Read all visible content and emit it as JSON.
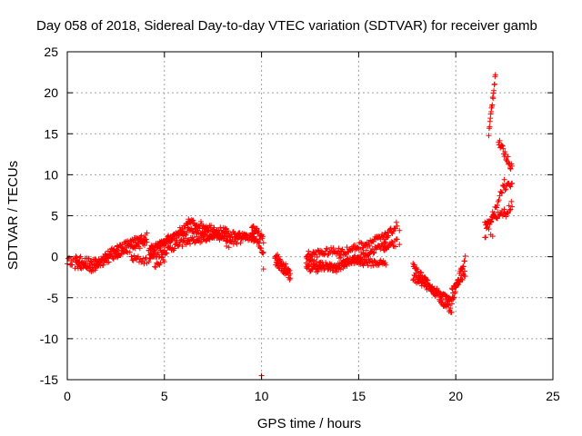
{
  "chart_data": {
    "type": "scatter",
    "title": "Day 058 of 2018, Sidereal Day-to-day VTEC variation (SDTVAR) for receiver gamb",
    "xlabel": "GPS time / hours",
    "ylabel": "SDTVAR / TECUs",
    "xlim": [
      0,
      25
    ],
    "ylim": [
      -15,
      25
    ],
    "xticks": [
      0,
      5,
      10,
      15,
      20,
      25
    ],
    "yticks": [
      -15,
      -10,
      -5,
      0,
      5,
      10,
      15,
      20,
      25
    ],
    "xtick_labels": [
      "0",
      "5",
      "10",
      "15",
      "20",
      "25"
    ],
    "ytick_labels": [
      "-15",
      "-10",
      "-5",
      "0",
      "5",
      "10",
      "15",
      "20",
      "25"
    ],
    "grid": true,
    "marker": "plus",
    "color": "#ff0000",
    "segments": [
      {
        "name": "seg1",
        "x0": 0.0,
        "x1": 0.3,
        "bands": [
          [
            -0.5,
            -0.6
          ]
        ],
        "step": 0.05
      },
      {
        "name": "seg2",
        "x0": 0.4,
        "x1": 1.5,
        "bands": [
          [
            -0.3,
            -0.8
          ],
          [
            -1.0,
            -1.5
          ]
        ],
        "step": 0.04
      },
      {
        "name": "seg3",
        "x0": 1.5,
        "x1": 2.6,
        "bands": [
          [
            -0.5,
            1.0
          ],
          [
            -1.0,
            0.3
          ]
        ],
        "step": 0.04
      },
      {
        "name": "seg4",
        "x0": 2.5,
        "x1": 4.1,
        "bands": [
          [
            1.0,
            2.5
          ],
          [
            0.3,
            1.8
          ]
        ],
        "step": 0.04
      },
      {
        "name": "seg5",
        "x0": 3.3,
        "x1": 4.1,
        "bands": [
          [
            -0.2,
            -0.5
          ]
        ],
        "step": 0.05
      },
      {
        "name": "seg6",
        "x0": 4.2,
        "x1": 6.2,
        "bands": [
          [
            0.8,
            3.2
          ],
          [
            -0.2,
            2.0
          ],
          [
            0.5,
            3.8
          ]
        ],
        "step": 0.04
      },
      {
        "name": "seg7",
        "x0": 4.5,
        "x1": 5.0,
        "bands": [
          [
            -1.0,
            -0.3
          ]
        ],
        "step": 0.05
      },
      {
        "name": "seg8",
        "x0": 6.2,
        "x1": 8.2,
        "bands": [
          [
            3.5,
            2.0
          ],
          [
            4.3,
            3.0
          ],
          [
            1.8,
            2.8
          ]
        ],
        "step": 0.04
      },
      {
        "name": "seg9",
        "x0": 8.2,
        "x1": 9.6,
        "bands": [
          [
            2.8,
            2.2
          ],
          [
            1.5,
            2.6
          ]
        ],
        "step": 0.04
      },
      {
        "name": "seg10",
        "x0": 9.5,
        "x1": 10.1,
        "bands": [
          [
            3.8,
            2.0
          ],
          [
            2.8,
            0.5
          ]
        ],
        "step": 0.03
      },
      {
        "name": "seg11",
        "x0": 10.7,
        "x1": 11.5,
        "bands": [
          [
            0.2,
            -1.8
          ],
          [
            -0.6,
            -2.5
          ]
        ],
        "step": 0.03
      },
      {
        "name": "seg12",
        "x0": 12.3,
        "x1": 14.0,
        "bands": [
          [
            -0.5,
            -1.5
          ],
          [
            -1.5,
            -1.2
          ],
          [
            0.2,
            0.8
          ]
        ],
        "step": 0.04
      },
      {
        "name": "seg13",
        "x0": 14.0,
        "x1": 16.4,
        "bands": [
          [
            -1.2,
            1.5
          ],
          [
            -0.5,
            -0.8
          ],
          [
            0.4,
            2.5
          ]
        ],
        "step": 0.04
      },
      {
        "name": "seg14",
        "x0": 16.3,
        "x1": 17.0,
        "bands": [
          [
            2.0,
            4.0
          ],
          [
            0.8,
            1.8
          ]
        ],
        "step": 0.04
      },
      {
        "name": "seg15",
        "x0": 17.8,
        "x1": 19.8,
        "bands": [
          [
            -1.2,
            -6.8
          ],
          [
            -2.5,
            -5.5
          ]
        ],
        "step": 0.03
      },
      {
        "name": "seg16",
        "x0": 19.8,
        "x1": 20.5,
        "bands": [
          [
            -5.5,
            0.0
          ],
          [
            -4.2,
            -2.0
          ]
        ],
        "step": 0.03
      },
      {
        "name": "seg17",
        "x0": 21.5,
        "x1": 22.5,
        "bands": [
          [
            2.5,
            9.0
          ],
          [
            4.0,
            5.5
          ]
        ],
        "step": 0.04
      },
      {
        "name": "seg18",
        "x0": 21.7,
        "x1": 22.05,
        "bands": [
          [
            15.0,
            22.5
          ]
        ],
        "step": 0.02
      },
      {
        "name": "seg19",
        "x0": 22.2,
        "x1": 22.9,
        "bands": [
          [
            14.0,
            10.8
          ]
        ],
        "step": 0.03
      },
      {
        "name": "seg20",
        "x0": 22.5,
        "x1": 22.9,
        "bands": [
          [
            8.5,
            9.0
          ],
          [
            5.0,
            6.5
          ]
        ],
        "step": 0.04
      }
    ],
    "extra_points": [
      [
        16.5,
        3.0
      ],
      [
        17.1,
        3.2
      ],
      [
        10.0,
        -14.5
      ],
      [
        10.1,
        -1.5
      ],
      [
        0.2,
        -0.5
      ],
      [
        17.1,
        1.5
      ],
      [
        21.8,
        2.7
      ],
      [
        21.9,
        2.5
      ]
    ]
  }
}
